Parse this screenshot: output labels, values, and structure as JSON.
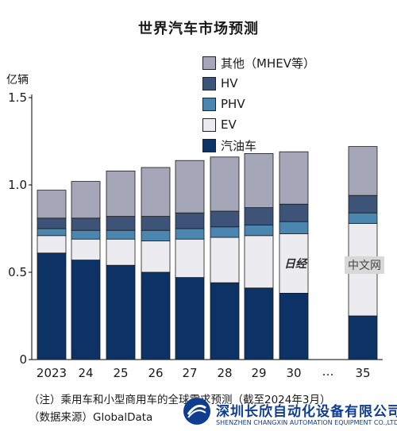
{
  "chart_data": {
    "type": "bar",
    "stacked": true,
    "title": "世界汽车市场预测",
    "ylabel": "亿辆",
    "ylim": [
      0,
      1.5
    ],
    "yticks": [
      "0",
      "0.5",
      "1.0",
      "1.5"
    ],
    "categories": [
      "2023",
      "24",
      "25",
      "26",
      "27",
      "28",
      "29",
      "30",
      "35"
    ],
    "gap_label": "…",
    "series": [
      {
        "name": "汽油车",
        "color": "#0d3366",
        "values": [
          0.61,
          0.57,
          0.54,
          0.5,
          0.47,
          0.44,
          0.41,
          0.38,
          0.25
        ]
      },
      {
        "name": "EV",
        "color": "#ececf0",
        "values": [
          0.1,
          0.12,
          0.15,
          0.18,
          0.22,
          0.26,
          0.3,
          0.34,
          0.53
        ]
      },
      {
        "name": "PHV",
        "color": "#4a86b0",
        "values": [
          0.04,
          0.05,
          0.05,
          0.06,
          0.06,
          0.06,
          0.06,
          0.07,
          0.06
        ]
      },
      {
        "name": "HV",
        "color": "#3d5378",
        "values": [
          0.06,
          0.07,
          0.08,
          0.08,
          0.09,
          0.09,
          0.1,
          0.1,
          0.1
        ]
      },
      {
        "name": "其他（MHEV等）",
        "color": "#a5a7b8",
        "values": [
          0.16,
          0.21,
          0.26,
          0.28,
          0.3,
          0.31,
          0.31,
          0.3,
          0.28
        ]
      }
    ],
    "legend_position": "top-right",
    "grid": false
  },
  "notes": {
    "note1": "（注）乘用车和小型商用车的全球需求预测（截至2024年3月）",
    "note2": "（数据来源）GlobalData"
  },
  "watermark": {
    "ribao": "日经",
    "zhongwen": "中文网"
  },
  "footer": {
    "brand": "深圳长欣自动化设备有限公司",
    "brand_en": "SHENZHEN CHANGXIN AUTOMATION EQUIPMENT CO.,LTD"
  }
}
